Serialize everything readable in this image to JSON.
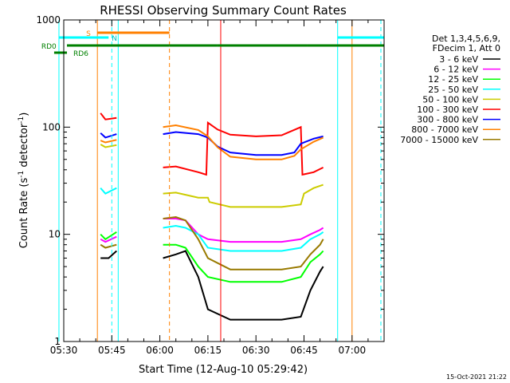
{
  "chart_data": {
    "type": "line",
    "title": "RHESSI Observing Summary Count Rates",
    "xlabel": "Start Time (12-Aug-10 05:29:42)",
    "ylabel": "Count Rate (s",
    "ylabel_sup": "-1",
    "ylabel_rest": " detector",
    "ylabel_sup2": "-1",
    "ylabel_end": ")",
    "y_scale": "log",
    "ylim": [
      1,
      1000
    ],
    "xlim_minutes": [
      0,
      100
    ],
    "x_ticks": [
      {
        "t": 0,
        "label": "05:30"
      },
      {
        "t": 15,
        "label": "05:45"
      },
      {
        "t": 30,
        "label": "06:00"
      },
      {
        "t": 45,
        "label": "06:15"
      },
      {
        "t": 60,
        "label": "06:30"
      },
      {
        "t": 75,
        "label": "06:45"
      },
      {
        "t": 90,
        "label": "07:00"
      }
    ],
    "y_ticks": [
      {
        "v": 1,
        "label": "1"
      },
      {
        "v": 10,
        "label": "10"
      },
      {
        "v": 100,
        "label": "100"
      },
      {
        "v": 1000,
        "label": "1000"
      }
    ],
    "legend_header": [
      "Det 1,3,4,5,6,9,",
      "FDecim 1, Att 0"
    ],
    "series": [
      {
        "name": "3 - 6 keV",
        "color": "#000000",
        "segments": [
          [
            [
              11.5,
              6
            ],
            [
              14,
              6
            ],
            [
              16.5,
              7
            ]
          ],
          [
            [
              31,
              6
            ],
            [
              35,
              6.5
            ],
            [
              38,
              7
            ],
            [
              42,
              4
            ],
            [
              45,
              2
            ],
            [
              52,
              1.6
            ],
            [
              60,
              1.6
            ],
            [
              68,
              1.6
            ],
            [
              74,
              1.7
            ],
            [
              77,
              3
            ],
            [
              80,
              4.5
            ],
            [
              81,
              5
            ]
          ]
        ]
      },
      {
        "name": "6 - 12 keV",
        "color": "#ff00ff",
        "segments": [
          [
            [
              11.5,
              9
            ],
            [
              13,
              8.5
            ],
            [
              16.5,
              9.5
            ]
          ],
          [
            [
              31,
              14
            ],
            [
              35,
              14
            ],
            [
              38,
              13.5
            ],
            [
              42,
              10
            ],
            [
              45,
              9
            ],
            [
              52,
              8.5
            ],
            [
              60,
              8.5
            ],
            [
              68,
              8.5
            ],
            [
              74,
              9
            ],
            [
              77,
              10
            ],
            [
              80,
              11
            ],
            [
              81,
              11.5
            ]
          ]
        ]
      },
      {
        "name": "12 - 25 keV",
        "color": "#00ff00",
        "segments": [
          [
            [
              11.5,
              10
            ],
            [
              13,
              9
            ],
            [
              16.5,
              10.5
            ]
          ],
          [
            [
              31,
              8
            ],
            [
              35,
              8
            ],
            [
              38,
              7.5
            ],
            [
              42,
              5
            ],
            [
              45,
              4
            ],
            [
              52,
              3.6
            ],
            [
              60,
              3.6
            ],
            [
              68,
              3.6
            ],
            [
              74,
              4
            ],
            [
              77,
              5.5
            ],
            [
              80,
              6.5
            ],
            [
              81,
              7
            ]
          ]
        ]
      },
      {
        "name": "25 - 50 keV",
        "color": "#00ffff",
        "segments": [
          [
            [
              11.5,
              27
            ],
            [
              13,
              24
            ],
            [
              16.5,
              27
            ]
          ],
          [
            [
              31,
              11.5
            ],
            [
              35,
              12
            ],
            [
              38,
              11.5
            ],
            [
              42,
              10
            ],
            [
              45,
              7.5
            ],
            [
              52,
              7
            ],
            [
              60,
              7
            ],
            [
              68,
              7
            ],
            [
              74,
              7.5
            ],
            [
              77,
              9
            ],
            [
              80,
              10
            ],
            [
              81,
              10.5
            ]
          ]
        ]
      },
      {
        "name": "50 - 100 keV",
        "color": "#cccc00",
        "segments": [
          [
            [
              11.5,
              69
            ],
            [
              13,
              65
            ],
            [
              16.5,
              68
            ]
          ],
          [
            [
              31,
              24
            ],
            [
              35,
              24.5
            ],
            [
              42,
              22
            ],
            [
              45,
              22
            ],
            [
              45.5,
              20
            ],
            [
              52,
              18
            ],
            [
              60,
              18
            ],
            [
              68,
              18
            ],
            [
              74,
              19
            ],
            [
              75,
              24
            ],
            [
              78,
              27
            ],
            [
              81,
              29
            ]
          ]
        ]
      },
      {
        "name": "100 - 300 keV",
        "color": "#ff0000",
        "segments": [
          [
            [
              11.5,
              135
            ],
            [
              13,
              118
            ],
            [
              16.5,
              122
            ]
          ],
          [
            [
              31,
              42
            ],
            [
              35,
              43
            ],
            [
              42,
              38
            ],
            [
              44.5,
              36
            ],
            [
              45,
              110
            ],
            [
              48,
              95
            ],
            [
              52,
              85
            ],
            [
              60,
              82
            ],
            [
              68,
              84
            ],
            [
              74,
              100
            ],
            [
              74.5,
              36
            ],
            [
              78,
              38
            ],
            [
              81,
              42
            ]
          ]
        ]
      },
      {
        "name": "300 - 800 keV",
        "color": "#0000ff",
        "segments": [
          [
            [
              11.5,
              88
            ],
            [
              13,
              80
            ],
            [
              16.5,
              86
            ]
          ],
          [
            [
              31,
              86
            ],
            [
              35,
              90
            ],
            [
              42,
              86
            ],
            [
              45,
              80
            ],
            [
              48,
              66
            ],
            [
              52,
              58
            ],
            [
              60,
              55
            ],
            [
              68,
              55
            ],
            [
              72,
              58
            ],
            [
              74,
              70
            ],
            [
              78,
              78
            ],
            [
              81,
              82
            ]
          ]
        ]
      },
      {
        "name": "800 - 7000 keV",
        "color": "#ff8000",
        "segments": [
          [
            [
              11.5,
              75
            ],
            [
              13,
              72
            ],
            [
              16.5,
              76
            ]
          ],
          [
            [
              31,
              100
            ],
            [
              35,
              104
            ],
            [
              42,
              94
            ],
            [
              45,
              82
            ],
            [
              48,
              65
            ],
            [
              52,
              53
            ],
            [
              60,
              50
            ],
            [
              68,
              50
            ],
            [
              72,
              54
            ],
            [
              74,
              62
            ],
            [
              78,
              73
            ],
            [
              81,
              80
            ]
          ]
        ]
      },
      {
        "name": "7000 - 15000 keV",
        "color": "#997a00",
        "segments": [
          [
            [
              11.5,
              8
            ],
            [
              13,
              7.5
            ],
            [
              16.5,
              8
            ]
          ],
          [
            [
              31,
              14
            ],
            [
              35,
              14.5
            ],
            [
              38,
              13.5
            ],
            [
              42,
              9
            ],
            [
              45,
              6
            ],
            [
              52,
              4.7
            ],
            [
              60,
              4.7
            ],
            [
              68,
              4.7
            ],
            [
              74,
              5
            ],
            [
              77,
              6.5
            ],
            [
              80,
              8
            ],
            [
              81,
              9
            ]
          ]
        ]
      }
    ],
    "vlines": [
      {
        "t": -1.5,
        "color": "#00ffff",
        "dash": false
      },
      {
        "t": 10.5,
        "color": "#ff8000",
        "dash": false
      },
      {
        "t": 15,
        "color": "#00ffff",
        "dash": true
      },
      {
        "t": 17,
        "color": "#00ffff",
        "dash": false
      },
      {
        "t": 33,
        "color": "#ff8000",
        "dash": true
      },
      {
        "t": 49,
        "color": "#ff0000",
        "dash": false
      },
      {
        "t": 85.5,
        "color": "#00ffff",
        "dash": false
      },
      {
        "t": 90,
        "color": "#ff8000",
        "dash": false
      },
      {
        "t": 99,
        "color": "#00ffff",
        "dash": true
      }
    ],
    "flag_bars": [
      {
        "label": "S",
        "color": "#ff8000",
        "label_t": 7,
        "y": 41,
        "segments": [
          [
            10.5,
            33
          ]
        ]
      },
      {
        "label": "N",
        "color": "#00ffff",
        "label_t": 15,
        "y": 47,
        "segments": [
          [
            -1.5,
            14
          ],
          [
            85.5,
            100
          ]
        ]
      },
      {
        "label": "RD0",
        "color": "#008000",
        "label_t": -7,
        "y": 57,
        "segments": [
          [
            1,
            33
          ],
          [
            33,
            48
          ],
          [
            48,
            76
          ],
          [
            76,
            100
          ]
        ]
      },
      {
        "label": "RD6",
        "color": "#008000",
        "label_t": 3,
        "y": 66,
        "segments": [
          [
            -3,
            1
          ]
        ]
      }
    ],
    "footer_date": "15-Oct-2021 21:22"
  }
}
